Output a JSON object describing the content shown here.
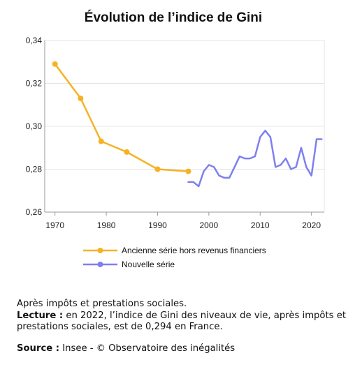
{
  "chart_data": {
    "type": "line",
    "title": "Évolution de l’indice de Gini",
    "xlabel": "",
    "ylabel": "",
    "xlim": [
      1968,
      2022.5
    ],
    "ylim": [
      0.26,
      0.34
    ],
    "x_ticks": [
      1970,
      1980,
      1990,
      2000,
      2010,
      2020
    ],
    "x_tick_labels": [
      "1970",
      "1980",
      "1990",
      "2000",
      "2010",
      "2020"
    ],
    "y_ticks": [
      0.26,
      0.28,
      0.3,
      0.32,
      0.34
    ],
    "y_tick_labels": [
      "0,26",
      "0,28",
      "0,30",
      "0,32",
      "0,34"
    ],
    "grid": "horizontal",
    "legend_position": "bottom",
    "series": [
      {
        "name": "Ancienne série hors revenus financiers",
        "color": "#F5B324",
        "markers": true,
        "x": [
          1970,
          1975,
          1979,
          1984,
          1990,
          1996
        ],
        "y": [
          0.329,
          0.313,
          0.293,
          0.288,
          0.28,
          0.279
        ]
      },
      {
        "name": "Nouvelle série",
        "color": "#7F7FF0",
        "markers": false,
        "x": [
          1996,
          1997,
          1998,
          1999,
          2000,
          2001,
          2002,
          2003,
          2004,
          2005,
          2006,
          2007,
          2008,
          2009,
          2010,
          2011,
          2012,
          2013,
          2014,
          2015,
          2016,
          2017,
          2018,
          2019,
          2020,
          2021,
          2022
        ],
        "y": [
          0.274,
          0.274,
          0.272,
          0.279,
          0.282,
          0.281,
          0.277,
          0.276,
          0.276,
          0.281,
          0.286,
          0.285,
          0.285,
          0.286,
          0.295,
          0.298,
          0.295,
          0.281,
          0.282,
          0.285,
          0.28,
          0.281,
          0.29,
          0.281,
          0.277,
          0.294,
          0.294
        ]
      }
    ]
  },
  "caption": {
    "line1": "Après impôts et prestations sociales.",
    "lecture_label": "Lecture :",
    "lecture_text": " en 2022, l’indice de Gini des niveaux de vie, après impôts et prestations sociales, est de 0,294 en France.",
    "source_label": "Source :",
    "source_text": " Insee - © Observatoire des inégalités"
  }
}
